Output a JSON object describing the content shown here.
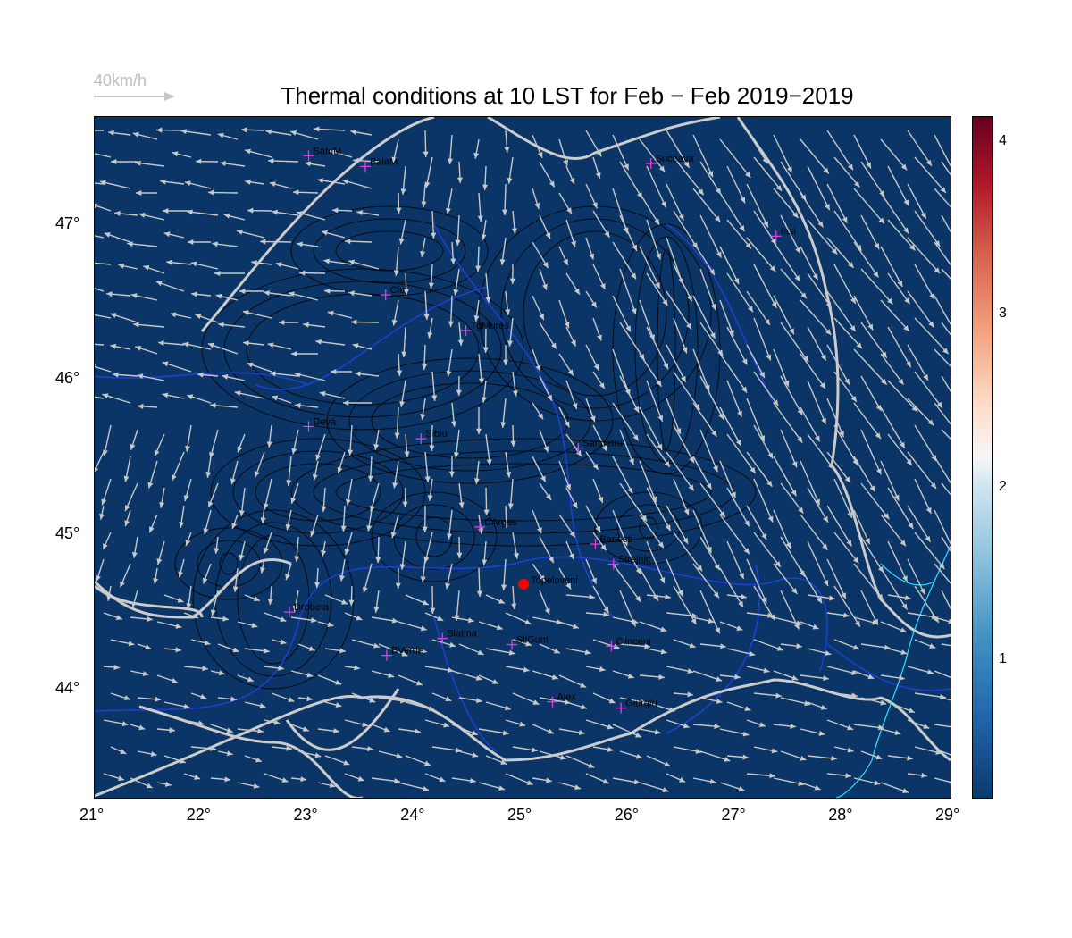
{
  "title": "Thermal conditions at 10 LST for Feb − Feb  2019−2019",
  "wind_legend": {
    "label": "40km/h"
  },
  "map": {
    "lon_range": [
      21,
      29
    ],
    "lat_range": [
      43.3,
      47.7
    ],
    "background": "#0a3566",
    "border_color": "#cccccc",
    "river_color": "#1f3fd6",
    "coast_color": "#33e0ff",
    "arrow_color": "#c8c8c8",
    "x_ticks": [
      "21°",
      "22°",
      "23°",
      "24°",
      "25°",
      "26°",
      "27°",
      "28°",
      "29°"
    ],
    "y_ticks": [
      "44°",
      "45°",
      "46°",
      "47°"
    ]
  },
  "cities": [
    {
      "name": "SatuM",
      "lon": 23.0,
      "lat": 47.45
    },
    {
      "name": "BaiaM",
      "lon": 23.53,
      "lat": 47.38
    },
    {
      "name": "Suceava",
      "lon": 26.2,
      "lat": 47.4
    },
    {
      "name": "Iasi",
      "lon": 27.37,
      "lat": 46.93
    },
    {
      "name": "Cluj",
      "lon": 23.72,
      "lat": 46.55
    },
    {
      "name": "TgMures",
      "lon": 24.47,
      "lat": 46.32
    },
    {
      "name": "Deva",
      "lon": 23.0,
      "lat": 45.7
    },
    {
      "name": "Sibiu",
      "lon": 24.05,
      "lat": 45.62
    },
    {
      "name": "Sanpetru",
      "lon": 25.52,
      "lat": 45.56
    },
    {
      "name": "CArges",
      "lon": 24.6,
      "lat": 45.05
    },
    {
      "name": "Banesti",
      "lon": 25.68,
      "lat": 44.94
    },
    {
      "name": "Strejnic",
      "lon": 25.85,
      "lat": 44.81
    },
    {
      "name": "Drobeta",
      "lon": 22.82,
      "lat": 44.5
    },
    {
      "name": "Slatina",
      "lon": 24.25,
      "lat": 44.33
    },
    {
      "name": "SilGum",
      "lon": 24.9,
      "lat": 44.29
    },
    {
      "name": "Clinceni",
      "lon": 25.83,
      "lat": 44.28
    },
    {
      "name": "BVerde",
      "lon": 23.73,
      "lat": 44.22
    },
    {
      "name": "Alex",
      "lon": 25.28,
      "lat": 43.92
    },
    {
      "name": "Giurgiu",
      "lon": 25.92,
      "lat": 43.88
    }
  ],
  "highlight": {
    "name": "Topoloveni",
    "lon": 25.01,
    "lat": 44.68,
    "color": "#ff0000"
  },
  "colorbar": {
    "ticks": [
      "1",
      "2",
      "3",
      "4"
    ],
    "tick_values": [
      1,
      2,
      3,
      4
    ],
    "range": [
      0.2,
      4.15
    ]
  }
}
